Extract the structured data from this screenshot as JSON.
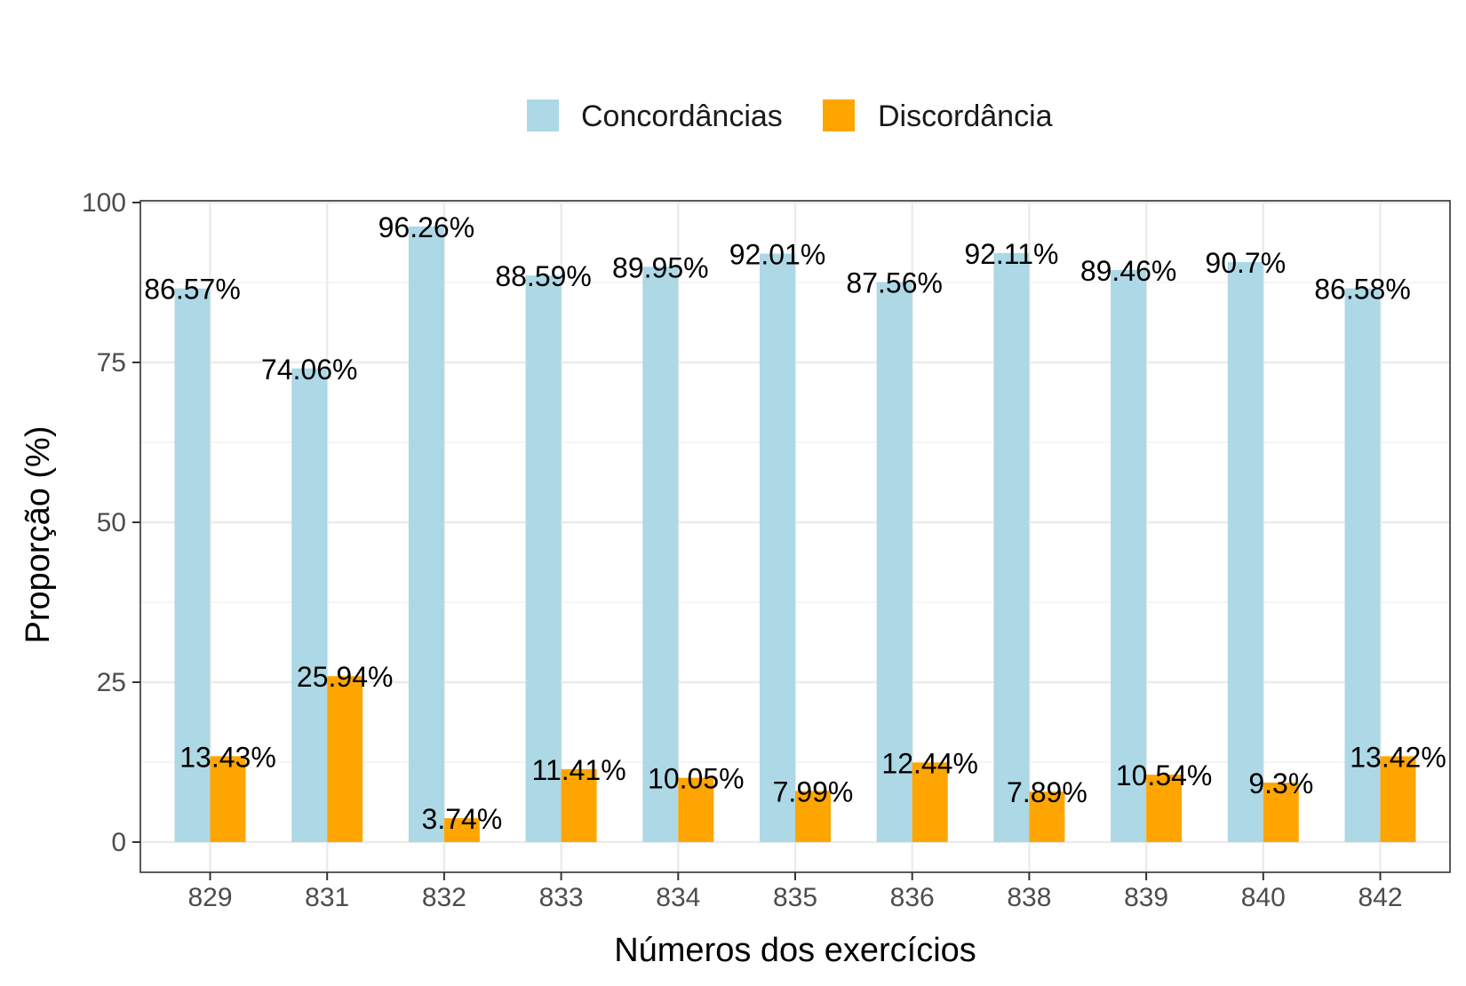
{
  "chart_data": {
    "type": "bar",
    "xlabel": "Números dos exercícios",
    "ylabel": "Proporção (%)",
    "ylim": [
      0,
      100
    ],
    "yticks": [
      0,
      25,
      50,
      75,
      100
    ],
    "grid": true,
    "legend_position": "top",
    "categories": [
      "829",
      "831",
      "832",
      "833",
      "834",
      "835",
      "836",
      "838",
      "839",
      "840",
      "842"
    ],
    "series": [
      {
        "name": "Concordâncias",
        "color": "#ADD8E6",
        "values": [
          86.57,
          74.06,
          96.26,
          88.59,
          89.95,
          92.01,
          87.56,
          92.11,
          89.46,
          90.7,
          86.58
        ],
        "labels": [
          "86.57%",
          "74.06%",
          "96.26%",
          "88.59%",
          "89.95%",
          "92.01%",
          "87.56%",
          "92.11%",
          "89.46%",
          "90.7%",
          "86.58%"
        ]
      },
      {
        "name": "Discordância",
        "color": "#FFA500",
        "values": [
          13.43,
          25.94,
          3.74,
          11.41,
          10.05,
          7.99,
          12.44,
          7.89,
          10.54,
          9.3,
          13.42
        ],
        "labels": [
          "13.43%",
          "25.94%",
          "3.74%",
          "11.41%",
          "10.05%",
          "7.99%",
          "12.44%",
          "7.89%",
          "10.54%",
          "9.3%",
          "13.42%"
        ]
      }
    ]
  }
}
